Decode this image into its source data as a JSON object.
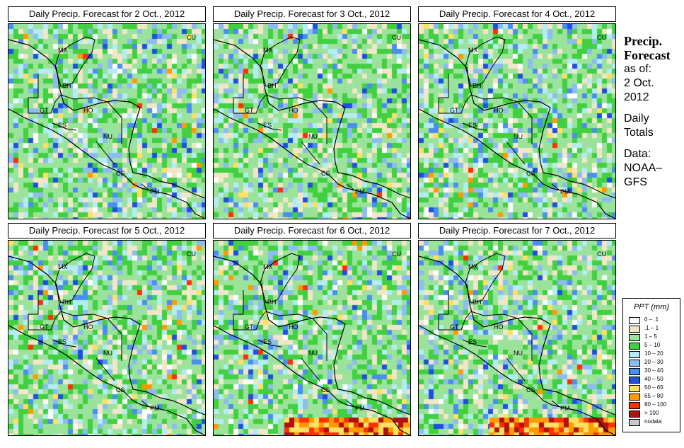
{
  "panels": [
    {
      "title": "Daily Precip. Forecast for  2 Oct., 2012",
      "seed": 11
    },
    {
      "title": "Daily Precip. Forecast for  3 Oct., 2012",
      "seed": 23
    },
    {
      "title": "Daily Precip. Forecast for  4 Oct., 2012",
      "seed": 37
    },
    {
      "title": "Daily Precip. Forecast for  5 Oct., 2012",
      "seed": 41
    },
    {
      "title": "Daily Precip. Forecast for  6 Oct., 2012",
      "seed": 53
    },
    {
      "title": "Daily Precip. Forecast for  7 Oct., 2012",
      "seed": 67
    }
  ],
  "country_labels": [
    "MX",
    "BH",
    "GT",
    "HO",
    "ES",
    "NU",
    "CS",
    "PM",
    "CU"
  ],
  "side": {
    "title_line1": "Precip.",
    "title_line2": "Forecast",
    "asof_line1": "as of:",
    "asof_line2": "2 Oct.",
    "asof_line3": "2012",
    "totals_line1": "Daily",
    "totals_line2": "Totals",
    "data_line1": "Data:",
    "data_line2": "NOAA–",
    "data_line3": "GFS"
  },
  "legend": {
    "title": "PPT (mm)",
    "items": [
      {
        "label": "0 – .1",
        "color": "#ffffff"
      },
      {
        "label": ".1 – 1",
        "color": "#f2e6c8"
      },
      {
        "label": "1 – 5",
        "color": "#9be39b"
      },
      {
        "label": "5 – 10",
        "color": "#40d040"
      },
      {
        "label": "10 – 20",
        "color": "#b4ecf4"
      },
      {
        "label": "20 – 30",
        "color": "#8cbcf0"
      },
      {
        "label": "30 – 40",
        "color": "#4a8ef0"
      },
      {
        "label": "40 – 50",
        "color": "#1e50e0"
      },
      {
        "label": "50 – 65",
        "color": "#ffe060"
      },
      {
        "label": "65 – 80",
        "color": "#ff9a00"
      },
      {
        "label": "80 – 100",
        "color": "#ff3000"
      },
      {
        "label": "> 100",
        "color": "#b01010"
      },
      {
        "label": "nodata",
        "color": "#c8c8c8"
      }
    ]
  }
}
